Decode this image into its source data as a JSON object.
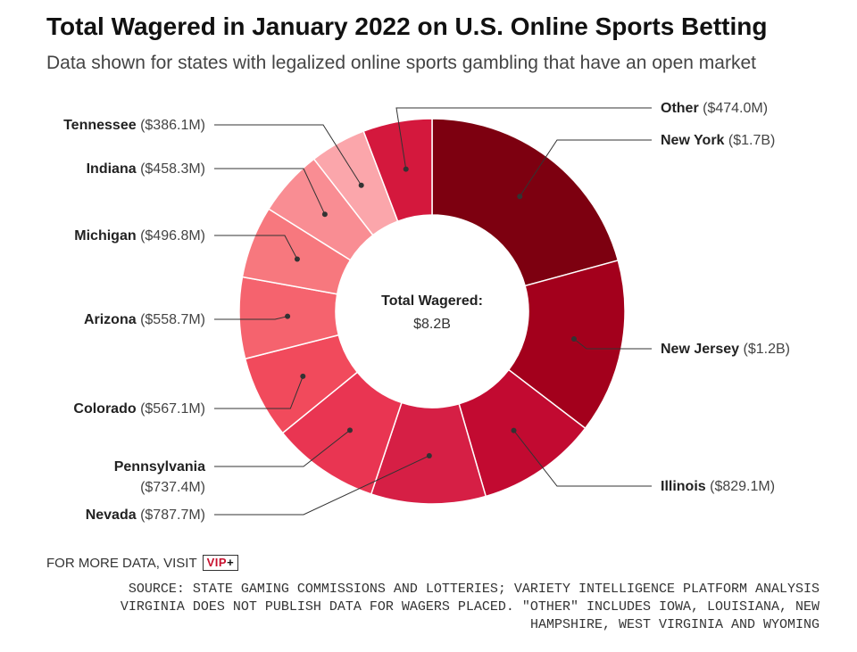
{
  "title": "Total Wagered in January 2022 on U.S. Online Sports Betting",
  "subtitle": "Data shown for states with legalized online sports gambling that have an open market",
  "center": {
    "label": "Total Wagered:",
    "value": "$8.2B"
  },
  "footer": {
    "more_data": "FOR MORE DATA, VISIT",
    "badge_main": "VIP",
    "badge_plus": "+",
    "source_lines": [
      "SOURCE: STATE GAMING COMMISSIONS AND LOTTERIES; VARIETY INTELLIGENCE PLATFORM ANALYSIS",
      "VIRGINIA DOES NOT PUBLISH DATA FOR WAGERS PLACED. \"OTHER\" INCLUDES IOWA, LOUISIANA, NEW",
      "HAMPSHIRE, WEST VIRGINIA AND WYOMING"
    ]
  },
  "chart_data": {
    "type": "pie",
    "donut": true,
    "title": "Total Wagered in January 2022 on U.S. Online Sports Betting",
    "subtitle": "Data shown for states with legalized online sports gambling that have an open market",
    "total": "$8.2B",
    "slices": [
      {
        "name": "New York",
        "amount": "($1.7B)",
        "value": 1700,
        "color": "#7d0010"
      },
      {
        "name": "New Jersey",
        "amount": "($1.2B)",
        "value": 1200,
        "color": "#a3001c"
      },
      {
        "name": "Illinois",
        "amount": "($829.1M)",
        "value": 829.1,
        "color": "#c20a31"
      },
      {
        "name": "Nevada",
        "amount": "($787.7M)",
        "value": 787.7,
        "color": "#d61f45"
      },
      {
        "name": "Pennsylvania",
        "amount": "($737.4M)",
        "value": 737.4,
        "color": "#e93552"
      },
      {
        "name": "Colorado",
        "amount": "($567.1M)",
        "value": 567.1,
        "color": "#f14a5c"
      },
      {
        "name": "Arizona",
        "amount": "($558.7M)",
        "value": 558.7,
        "color": "#f5636e"
      },
      {
        "name": "Michigan",
        "amount": "($496.8M)",
        "value": 496.8,
        "color": "#f7787e"
      },
      {
        "name": "Indiana",
        "amount": "($458.3M)",
        "value": 458.3,
        "color": "#f98d93"
      },
      {
        "name": "Tennessee",
        "amount": "($386.1M)",
        "value": 386.1,
        "color": "#fba6ab"
      },
      {
        "name": "Other",
        "amount": "($474.0M)",
        "value": 474.0,
        "color": "#d4183d"
      }
    ]
  }
}
